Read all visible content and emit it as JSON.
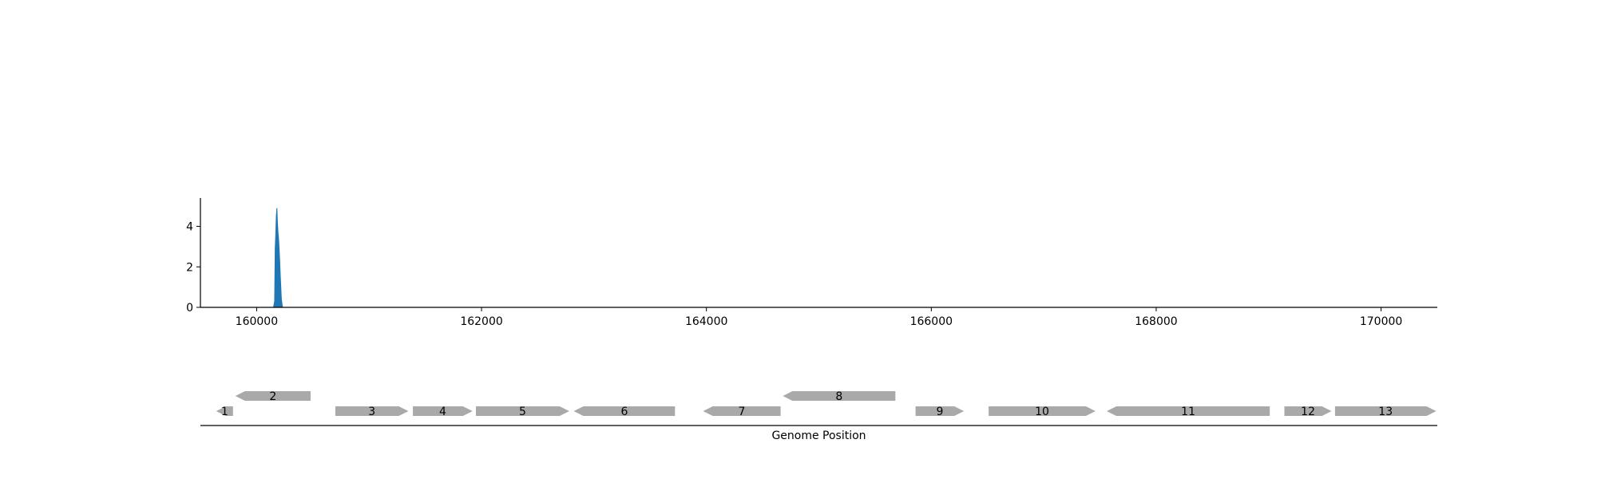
{
  "chart_data": [
    {
      "type": "area",
      "title": "",
      "xlabel": "",
      "ylabel": "",
      "xlim": [
        159500,
        170500
      ],
      "ylim": [
        0,
        5.4
      ],
      "x_ticks": [
        160000,
        162000,
        164000,
        166000,
        168000,
        170000
      ],
      "x_tick_labels": [
        "160000",
        "162000",
        "164000",
        "166000",
        "168000",
        "170000"
      ],
      "y_ticks": [
        0,
        2,
        4
      ],
      "y_tick_labels": [
        "0",
        "2",
        "4"
      ],
      "grid": false,
      "color": "#1f77b4",
      "series": [
        {
          "x": [
            160000,
            160150,
            160160,
            160165,
            160170,
            160175,
            160180,
            160185,
            160190,
            160195,
            160200,
            160205,
            160210,
            160215,
            160220,
            160230,
            160500,
            165000,
            170000
          ],
          "y": [
            0,
            0,
            0.3,
            2.9,
            3.6,
            4.5,
            4.9,
            4.2,
            3.7,
            3.4,
            2.9,
            2.3,
            1.6,
            1.0,
            0.4,
            0,
            0,
            0,
            0
          ]
        }
      ]
    },
    {
      "type": "gene-map",
      "xlabel": "Genome Position",
      "xlim": [
        159500,
        170500
      ],
      "color": "#a9a9a9",
      "genes": [
        {
          "label": "1",
          "start": 159640,
          "end": 159790,
          "strand": -1,
          "row": 0
        },
        {
          "label": "2",
          "start": 159810,
          "end": 160480,
          "strand": -1,
          "row": 1
        },
        {
          "label": "3",
          "start": 160700,
          "end": 161350,
          "strand": 1,
          "row": 0
        },
        {
          "label": "4",
          "start": 161390,
          "end": 161920,
          "strand": 1,
          "row": 0
        },
        {
          "label": "5",
          "start": 161950,
          "end": 162780,
          "strand": 1,
          "row": 0
        },
        {
          "label": "6",
          "start": 162820,
          "end": 163720,
          "strand": -1,
          "row": 0
        },
        {
          "label": "7",
          "start": 163970,
          "end": 164660,
          "strand": -1,
          "row": 0
        },
        {
          "label": "8",
          "start": 164680,
          "end": 165680,
          "strand": -1,
          "row": 1
        },
        {
          "label": "9",
          "start": 165860,
          "end": 166290,
          "strand": 1,
          "row": 0
        },
        {
          "label": "10",
          "start": 166510,
          "end": 167460,
          "strand": 1,
          "row": 0
        },
        {
          "label": "11",
          "start": 167560,
          "end": 169010,
          "strand": -1,
          "row": 0
        },
        {
          "label": "12",
          "start": 169140,
          "end": 169560,
          "strand": 1,
          "row": 0
        },
        {
          "label": "13",
          "start": 169590,
          "end": 170490,
          "strand": 1,
          "row": 0
        }
      ]
    }
  ]
}
